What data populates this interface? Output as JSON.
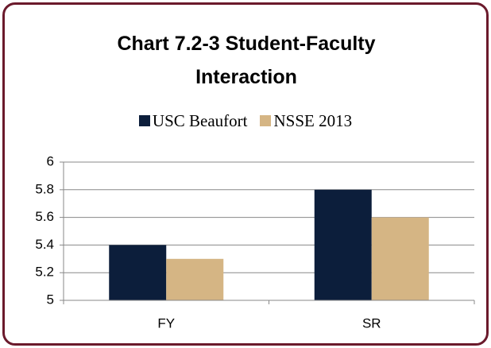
{
  "chart_data": {
    "type": "bar",
    "title": "Chart 7.2-3 Student-Faculty Interaction",
    "categories": [
      "FY",
      "SR"
    ],
    "series": [
      {
        "name": "USC Beaufort",
        "color": "#0c1e3b",
        "values": [
          5.4,
          5.8
        ]
      },
      {
        "name": "NSSE 2013",
        "color": "#d5b584",
        "values": [
          5.3,
          5.6
        ]
      }
    ],
    "ylim": [
      5,
      6
    ],
    "yticks": [
      5,
      5.2,
      5.4,
      5.6,
      5.8,
      6
    ],
    "grid": true,
    "legend": "top"
  }
}
